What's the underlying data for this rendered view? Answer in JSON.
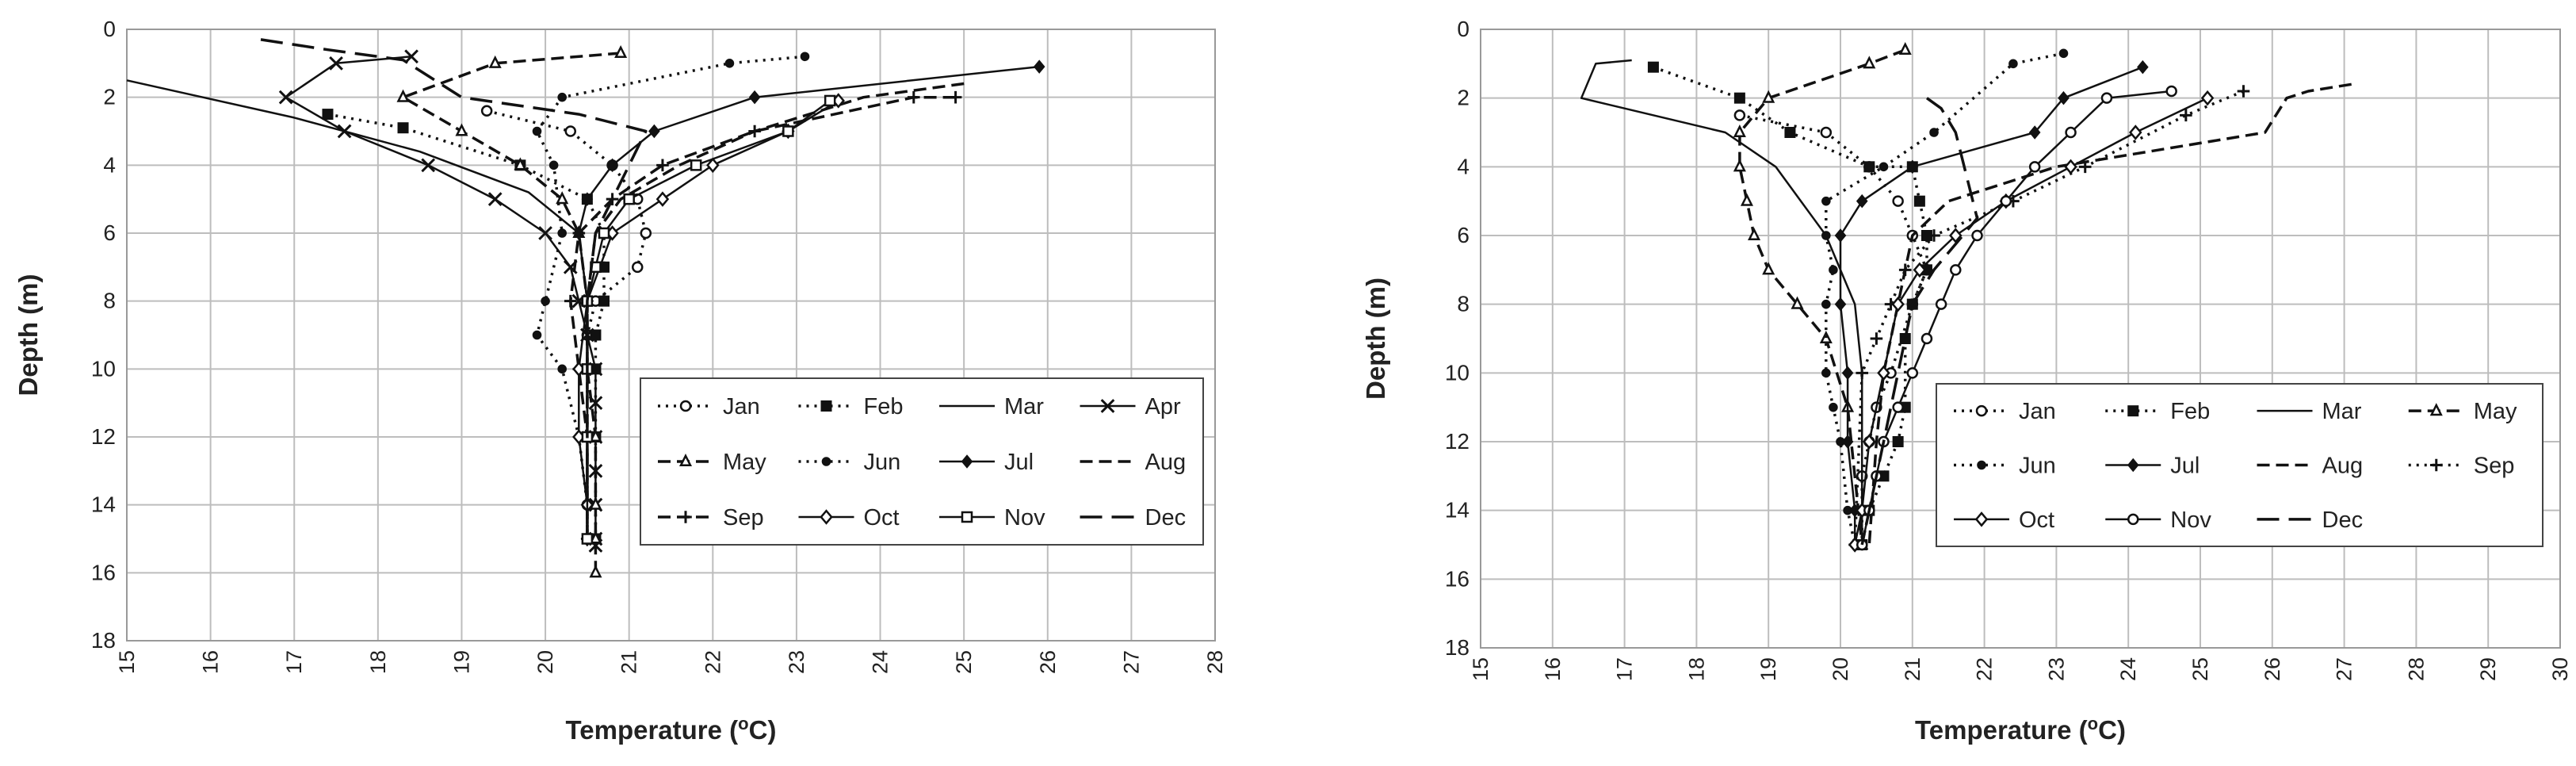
{
  "chart_data": [
    {
      "type": "line",
      "xlabel_main": "Temperature (",
      "xlabel_sup": "o",
      "xlabel_tail": "C)",
      "ylabel": "Depth (m)",
      "xlim": [
        15,
        28
      ],
      "ylim": [
        0,
        18
      ],
      "y_inverted": true,
      "x_ticks": [
        "15",
        "16",
        "17",
        "18",
        "19",
        "20",
        "21",
        "22",
        "23",
        "24",
        "25",
        "26",
        "27",
        "28"
      ],
      "y_ticks": [
        "0",
        "2",
        "4",
        "6",
        "8",
        "10",
        "12",
        "14",
        "16",
        "18"
      ],
      "grid": true,
      "legend_position": "lower-right",
      "legend_columns": 4,
      "series": [
        {
          "name": "Jan",
          "dash": "dot",
          "marker": "circle-open",
          "x": [
            19.3,
            20.3,
            20.8,
            21.1,
            21.2,
            21.1,
            20.6,
            20.5,
            20.5,
            20.5,
            20.5,
            20.5
          ],
          "y": [
            2.4,
            3.0,
            4.0,
            5.0,
            6.0,
            7.0,
            8.0,
            9.0,
            10.0,
            12.0,
            14.0,
            15.0
          ]
        },
        {
          "name": "Feb",
          "dash": "dot",
          "marker": "square",
          "x": [
            17.4,
            18.3,
            19.7,
            20.5,
            20.7,
            20.7,
            20.7,
            20.6,
            20.6,
            20.6,
            20.6
          ],
          "y": [
            2.5,
            2.9,
            4.0,
            5.0,
            6.0,
            7.0,
            8.0,
            9.0,
            10.0,
            12.0,
            15.0
          ]
        },
        {
          "name": "Mar",
          "dash": "solid",
          "marker": "none",
          "x": [
            15.0,
            17.0,
            18.5,
            19.8,
            20.4,
            20.5,
            20.5,
            20.5,
            20.5
          ],
          "y": [
            1.5,
            2.6,
            3.6,
            4.8,
            6.0,
            8.0,
            10.0,
            12.0,
            15.0
          ]
        },
        {
          "name": "Apr",
          "dash": "solid",
          "marker": "x",
          "x": [
            18.4,
            17.5,
            16.9,
            17.6,
            18.6,
            19.4,
            20.0,
            20.3,
            20.4,
            20.5,
            20.6,
            20.6,
            20.6,
            20.6,
            20.6,
            20.6,
            20.6
          ],
          "y": [
            0.8,
            1.0,
            2.0,
            3.0,
            4.0,
            5.0,
            6.0,
            7.0,
            8.0,
            9.0,
            10.0,
            11.0,
            12.0,
            13.0,
            14.0,
            15.0,
            15.2
          ]
        },
        {
          "name": "May",
          "dash": "dash",
          "marker": "triangle-open",
          "x": [
            20.9,
            19.4,
            18.3,
            19.0,
            19.7,
            20.2,
            20.4,
            20.5,
            20.5,
            20.6,
            20.6,
            20.6,
            20.6
          ],
          "y": [
            0.7,
            1.0,
            2.0,
            3.0,
            4.0,
            5.0,
            6.0,
            8.0,
            10.0,
            12.0,
            14.0,
            15.0,
            16.0
          ]
        },
        {
          "name": "Jun",
          "dash": "dot",
          "marker": "dot",
          "x": [
            23.1,
            22.2,
            20.2,
            19.9,
            20.1,
            20.2,
            20.0,
            19.9,
            20.2,
            20.4,
            20.5,
            20.5
          ],
          "y": [
            0.8,
            1.0,
            2.0,
            3.0,
            4.0,
            6.0,
            8.0,
            9.0,
            10.0,
            12.0,
            14.0,
            15.0
          ]
        },
        {
          "name": "Jul",
          "dash": "solid",
          "marker": "diamond",
          "x": [
            25.9,
            22.5,
            21.3,
            20.8,
            20.5,
            20.4,
            20.5,
            20.5,
            20.5,
            20.5
          ],
          "y": [
            1.1,
            2.0,
            3.0,
            4.0,
            5.0,
            6.0,
            8.0,
            10.0,
            12.0,
            15.0
          ]
        },
        {
          "name": "Aug",
          "dash": "dash",
          "marker": "none",
          "x": [
            25.0,
            23.8,
            22.5,
            21.6,
            20.9,
            20.6,
            20.5,
            20.5,
            20.5,
            20.5
          ],
          "y": [
            1.6,
            2.0,
            3.0,
            4.0,
            5.0,
            6.0,
            8.0,
            10.0,
            12.0,
            15.0
          ]
        },
        {
          "name": "Sep",
          "dash": "dash",
          "marker": "plus",
          "x": [
            24.9,
            24.4,
            22.5,
            21.4,
            20.8,
            20.4,
            20.3,
            20.4,
            20.5,
            20.5
          ],
          "y": [
            2.0,
            2.0,
            3.0,
            4.0,
            5.0,
            6.0,
            8.0,
            10.0,
            12.0,
            15.0
          ]
        },
        {
          "name": "Oct",
          "dash": "solid",
          "marker": "diamond-open",
          "x": [
            23.5,
            22.9,
            22.0,
            21.4,
            20.8,
            20.5,
            20.4,
            20.4,
            20.5,
            20.5
          ],
          "y": [
            2.1,
            3.0,
            4.0,
            5.0,
            6.0,
            8.0,
            10.0,
            12.0,
            14.0,
            15.0
          ]
        },
        {
          "name": "Nov",
          "dash": "solid",
          "marker": "square-open",
          "x": [
            23.4,
            22.9,
            21.8,
            21.0,
            20.7,
            20.6,
            20.5,
            20.5,
            20.5,
            20.5
          ],
          "y": [
            2.1,
            3.0,
            4.0,
            5.0,
            6.0,
            7.0,
            8.0,
            10.0,
            12.0,
            15.0
          ]
        },
        {
          "name": "Dec",
          "dash": "longdash",
          "marker": "none",
          "x": [
            16.6,
            17.4,
            18.3,
            19.0,
            20.4,
            21.2,
            20.8,
            20.6,
            20.5,
            20.5,
            20.5
          ],
          "y": [
            0.3,
            0.6,
            0.9,
            2.0,
            2.5,
            3.0,
            5.0,
            6.0,
            8.0,
            12.0,
            15.0
          ]
        }
      ]
    },
    {
      "type": "line",
      "xlabel_main": "Temperature (",
      "xlabel_sup": "o",
      "xlabel_tail": "C)",
      "ylabel": "Depth (m)",
      "xlim": [
        15,
        30
      ],
      "ylim": [
        0,
        18
      ],
      "y_inverted": true,
      "x_ticks": [
        "15",
        "16",
        "17",
        "18",
        "19",
        "20",
        "21",
        "22",
        "23",
        "24",
        "25",
        "26",
        "27",
        "28",
        "29",
        "30"
      ],
      "y_ticks": [
        "0",
        "2",
        "4",
        "6",
        "8",
        "10",
        "12",
        "14",
        "16",
        "18"
      ],
      "grid": true,
      "legend_position": "lower-right",
      "legend_columns": 4,
      "series": [
        {
          "name": "Jan",
          "dash": "dot",
          "marker": "circle-open",
          "x": [
            18.6,
            19.8,
            20.4,
            20.8,
            21.0,
            21.2,
            21.0,
            20.7,
            20.5,
            20.4,
            20.3,
            20.3
          ],
          "y": [
            2.5,
            3.0,
            4.0,
            5.0,
            6.0,
            7.0,
            8.0,
            10.0,
            11.0,
            12.0,
            13.0,
            15.0
          ]
        },
        {
          "name": "Feb",
          "dash": "dot",
          "marker": "square",
          "x": [
            17.4,
            18.6,
            19.3,
            20.4,
            21.0,
            21.1,
            21.2,
            21.2,
            21.0,
            20.9,
            20.9,
            20.8,
            20.6,
            20.4,
            20.3
          ],
          "y": [
            1.1,
            2.0,
            3.0,
            4.0,
            4.0,
            5.0,
            6.0,
            7.0,
            8.0,
            9.0,
            11.0,
            12.0,
            13.0,
            14.0,
            15.0
          ]
        },
        {
          "name": "Mar",
          "dash": "solid",
          "marker": "none",
          "x": [
            17.1,
            16.6,
            16.4,
            18.4,
            19.1,
            19.8,
            20.2,
            20.3,
            20.3,
            20.3
          ],
          "y": [
            0.9,
            1.0,
            2.0,
            3.0,
            4.0,
            6.0,
            8.0,
            10.0,
            12.0,
            15.0
          ]
        },
        {
          "name": "May",
          "dash": "dash",
          "marker": "triangle-open",
          "x": [
            20.9,
            20.4,
            19.0,
            18.6,
            18.6,
            18.7,
            18.8,
            19.0,
            19.4,
            19.8,
            20.1,
            20.3
          ],
          "y": [
            0.6,
            1.0,
            2.0,
            3.0,
            4.0,
            5.0,
            6.0,
            7.0,
            8.0,
            9.0,
            11.0,
            15.0
          ]
        },
        {
          "name": "Jun",
          "dash": "dot",
          "marker": "dot",
          "x": [
            23.1,
            22.4,
            21.3,
            20.6,
            19.8,
            19.8,
            19.9,
            19.8,
            19.8,
            19.9,
            20.0,
            20.1,
            20.2
          ],
          "y": [
            0.7,
            1.0,
            3.0,
            4.0,
            5.0,
            6.0,
            7.0,
            8.0,
            10.0,
            11.0,
            12.0,
            14.0,
            15.0
          ]
        },
        {
          "name": "Jul",
          "dash": "solid",
          "marker": "diamond",
          "x": [
            24.2,
            23.1,
            22.7,
            21.0,
            20.3,
            20.0,
            20.0,
            20.1,
            20.1,
            20.2,
            20.2
          ],
          "y": [
            1.1,
            2.0,
            3.0,
            4.0,
            5.0,
            6.0,
            8.0,
            10.0,
            12.0,
            14.0,
            15.0
          ]
        },
        {
          "name": "Aug",
          "dash": "dash",
          "marker": "none",
          "x": [
            27.1,
            26.5,
            26.2,
            25.9,
            23.0,
            21.5,
            21.0,
            20.8,
            20.6,
            20.5,
            20.4
          ],
          "y": [
            1.6,
            1.8,
            2.0,
            3.0,
            4.0,
            5.0,
            6.0,
            8.0,
            10.0,
            12.0,
            15.0
          ]
        },
        {
          "name": "Sep",
          "dash": "dot",
          "marker": "plus",
          "x": [
            25.6,
            24.8,
            23.4,
            22.4,
            21.3,
            20.9,
            20.7,
            20.5,
            20.3,
            20.2
          ],
          "y": [
            1.8,
            2.5,
            4.0,
            5.0,
            6.0,
            7.0,
            8.0,
            9.0,
            10.0,
            15.0
          ]
        },
        {
          "name": "Oct",
          "dash": "solid",
          "marker": "diamond-open",
          "x": [
            25.1,
            24.1,
            23.2,
            22.3,
            21.6,
            21.1,
            20.8,
            20.6,
            20.4,
            20.3,
            20.2
          ],
          "y": [
            2.0,
            3.0,
            4.0,
            5.0,
            6.0,
            7.0,
            8.0,
            10.0,
            12.0,
            14.0,
            15.0
          ]
        },
        {
          "name": "Nov",
          "dash": "solid",
          "marker": "circle-open",
          "x": [
            24.6,
            23.7,
            23.2,
            22.7,
            22.3,
            21.9,
            21.6,
            21.4,
            21.2,
            21.0,
            20.8,
            20.6,
            20.5,
            20.4,
            20.3
          ],
          "y": [
            1.8,
            2.0,
            3.0,
            4.0,
            5.0,
            6.0,
            7.0,
            8.0,
            9.0,
            10.0,
            11.0,
            12.0,
            13.0,
            14.0,
            15.0
          ]
        },
        {
          "name": "Dec",
          "dash": "longdash",
          "marker": "none",
          "x": [
            21.2,
            21.4,
            21.6,
            21.9,
            21.7,
            21.3,
            21.0,
            20.8,
            20.6,
            20.4,
            20.3
          ],
          "y": [
            2.0,
            2.3,
            3.0,
            5.5,
            6.0,
            7.0,
            8.0,
            10.0,
            12.0,
            14.0,
            15.0
          ]
        }
      ]
    }
  ]
}
